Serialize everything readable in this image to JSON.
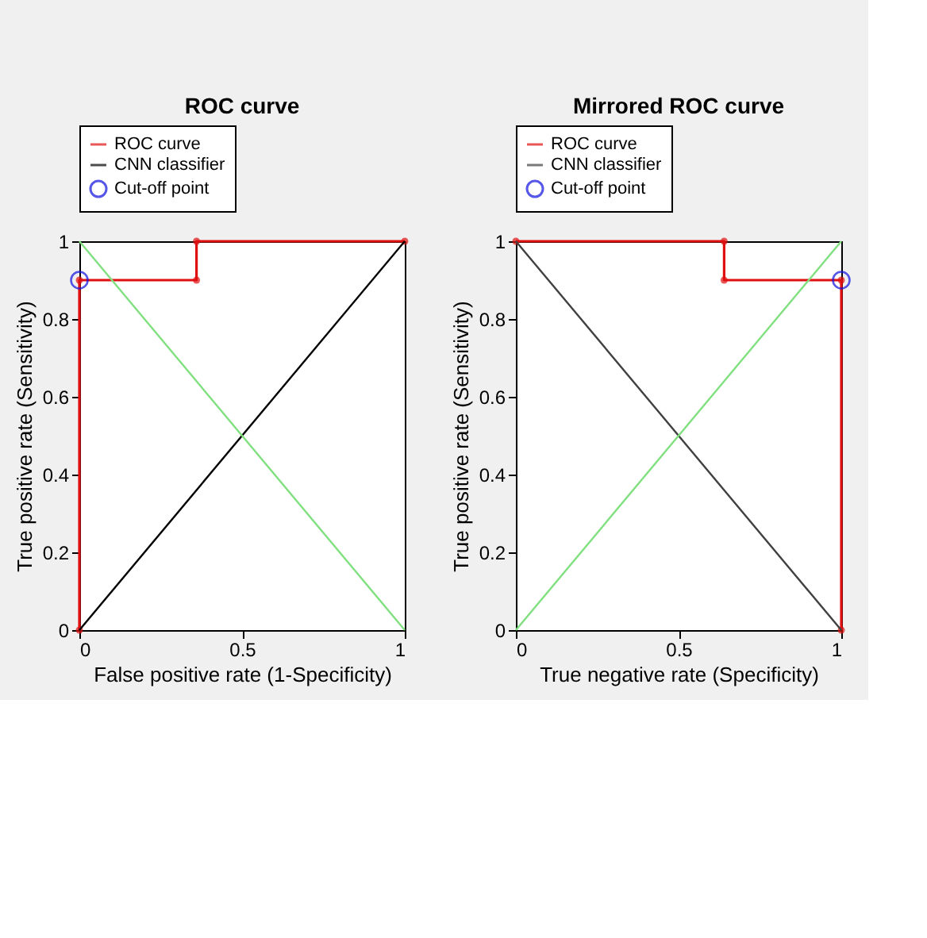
{
  "chart_data": [
    {
      "type": "line",
      "title": "ROC curve",
      "xlabel": "False positive rate (1-Specificity)",
      "ylabel": "True positive rate (Sensitivity)",
      "xlim": [
        0,
        1
      ],
      "ylim": [
        0,
        1
      ],
      "xticks": [
        0,
        0.5,
        1
      ],
      "yticks": [
        0,
        0.2,
        0.4,
        0.6,
        0.8,
        1
      ],
      "grid": false,
      "legend": "top",
      "series": [
        {
          "name": "ROC curve",
          "color": "#e01010",
          "x": [
            0,
            0,
            0.36,
            0.36,
            1
          ],
          "values": [
            0,
            0.9,
            0.9,
            1,
            1
          ],
          "marker": "circle"
        },
        {
          "name": "CNN classifier",
          "color": "#000000",
          "x": [
            0,
            1
          ],
          "values": [
            0,
            1
          ]
        },
        {
          "color": "#80e080",
          "x": [
            0,
            1
          ],
          "values": [
            1,
            0
          ]
        },
        {
          "name": "Cut-off point",
          "type": "scatter",
          "color": "#1010e0",
          "x": [
            0
          ],
          "values": [
            0.9
          ],
          "marker": "circle"
        }
      ]
    },
    {
      "type": "line",
      "title": "Mirrored ROC curve",
      "xlabel": "True negative rate (Specificity)",
      "ylabel": "True positive rate (Sensitivity)",
      "xlim": [
        0,
        1
      ],
      "ylim": [
        0,
        1
      ],
      "xticks": [
        0,
        0.5,
        1
      ],
      "yticks": [
        0,
        0.2,
        0.4,
        0.6,
        0.8,
        1
      ],
      "grid": false,
      "legend": "top",
      "series": [
        {
          "name": "ROC curve",
          "color": "#e01010",
          "x": [
            0,
            0.64,
            0.64,
            1,
            1
          ],
          "values": [
            1,
            1,
            0.9,
            0.9,
            0
          ],
          "marker": "circle"
        },
        {
          "name": "CNN classifier",
          "color": "#404040",
          "x": [
            0,
            1
          ],
          "values": [
            1,
            0
          ]
        },
        {
          "color": "#80e080",
          "x": [
            0,
            1
          ],
          "values": [
            0,
            1
          ]
        },
        {
          "name": "Cut-off point",
          "type": "scatter",
          "color": "#1010e0",
          "x": [
            1
          ],
          "values": [
            0.9
          ],
          "marker": "circle"
        }
      ]
    }
  ]
}
